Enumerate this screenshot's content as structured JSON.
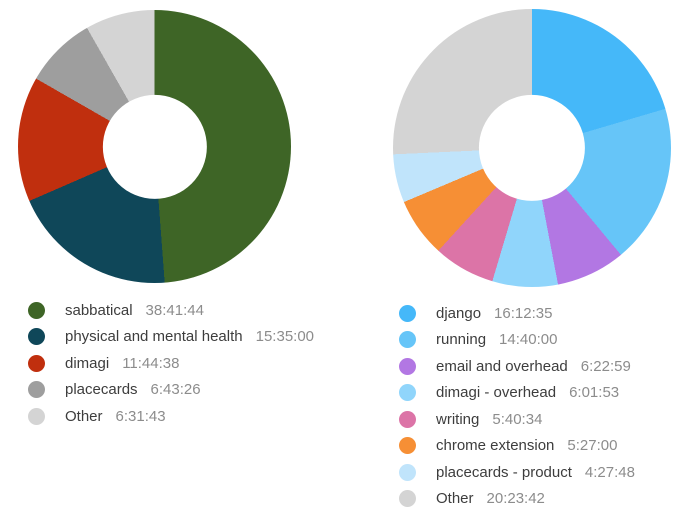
{
  "chart_data": [
    {
      "type": "pie",
      "subtype": "donut",
      "legend_position": "bottom",
      "value_format": "H:MM:SS",
      "start_angle_deg": 0,
      "direction": "clockwise",
      "items": [
        {
          "label": "sabbatical",
          "value": "38:41:44",
          "color": "#3e6526"
        },
        {
          "label": "physical and mental health",
          "value": "15:35:00",
          "color": "#0f4759"
        },
        {
          "label": "dimagi",
          "value": "11:44:38",
          "color": "#c02f0e"
        },
        {
          "label": "placecards",
          "value": "6:43:26",
          "color": "#9e9e9e"
        },
        {
          "label": "Other",
          "value": "6:31:43",
          "color": "#d4d4d4"
        }
      ]
    },
    {
      "type": "pie",
      "subtype": "donut",
      "legend_position": "bottom",
      "value_format": "H:MM:SS",
      "start_angle_deg": 0,
      "direction": "clockwise",
      "items": [
        {
          "label": "django",
          "value": "16:12:35",
          "color": "#45b8f9"
        },
        {
          "label": "running",
          "value": "14:40:00",
          "color": "#66c5f8"
        },
        {
          "label": "email and overhead",
          "value": "6:22:59",
          "color": "#b277e3"
        },
        {
          "label": "dimagi - overhead",
          "value": "6:01:53",
          "color": "#90d5fb"
        },
        {
          "label": "writing",
          "value": "5:40:34",
          "color": "#dc74a7"
        },
        {
          "label": "chrome extension",
          "value": "5:27:00",
          "color": "#f68f35"
        },
        {
          "label": "placecards - product",
          "value": "4:27:48",
          "color": "#c0e4fb"
        },
        {
          "label": "Other",
          "value": "20:23:42",
          "color": "#d4d4d4"
        }
      ]
    }
  ]
}
